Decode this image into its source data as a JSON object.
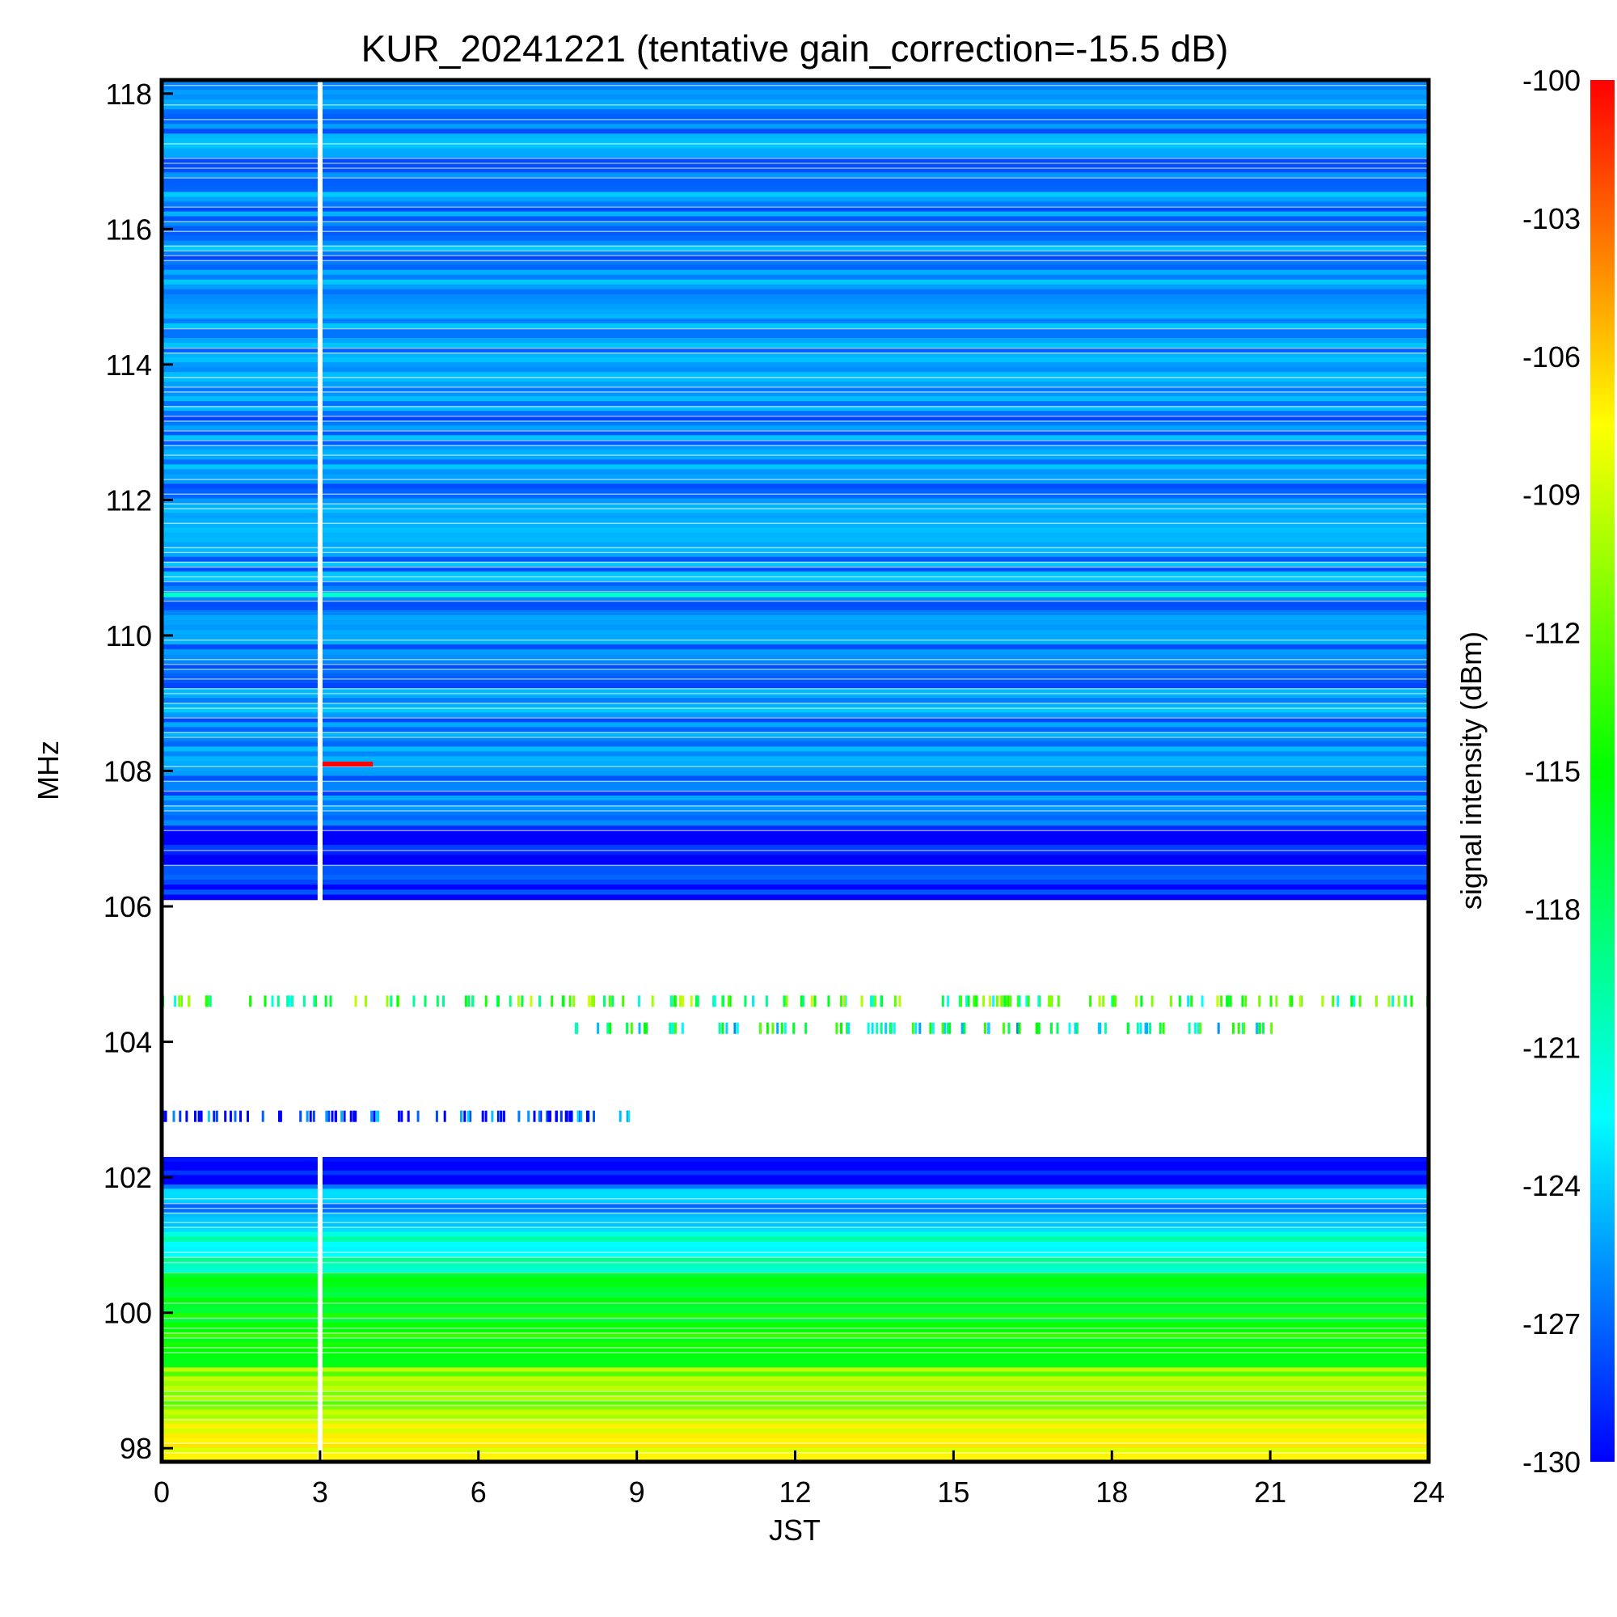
{
  "chart_data": {
    "type": "heatmap",
    "title": "KUR_20241221 (tentative gain_correction=-15.5 dB)",
    "xlabel": "JST",
    "ylabel": "MHz",
    "xlim": [
      0,
      24
    ],
    "ylim": [
      97.8,
      118.2
    ],
    "x_ticks": [
      "0",
      "3",
      "6",
      "9",
      "12",
      "15",
      "18",
      "21",
      "24"
    ],
    "y_ticks": [
      "98",
      "100",
      "102",
      "104",
      "106",
      "108",
      "110",
      "112",
      "114",
      "116",
      "118"
    ],
    "colorbar": {
      "label": "signal intensity (dBm)",
      "range": [
        -130,
        -100
      ],
      "ticks": [
        "-100",
        "-103",
        "-106",
        "-109",
        "-112",
        "-115",
        "-118",
        "-121",
        "-124",
        "-127",
        "-130"
      ],
      "colormap": [
        "#0000ff",
        "#0080ff",
        "#00ffff",
        "#00ff80",
        "#00ff00",
        "#80ff00",
        "#ffff00",
        "#ff8000",
        "#ff0000"
      ]
    },
    "bands": [
      {
        "from": 97.8,
        "to": 98.5,
        "intensity": -108
      },
      {
        "from": 98.5,
        "to": 99.2,
        "intensity": -111
      },
      {
        "from": 99.2,
        "to": 100.0,
        "intensity": -115
      },
      {
        "from": 100.0,
        "to": 100.6,
        "intensity": -117
      },
      {
        "from": 100.6,
        "to": 101.2,
        "intensity": -121
      },
      {
        "from": 101.2,
        "to": 101.9,
        "intensity": -125
      },
      {
        "from": 101.9,
        "to": 102.3,
        "intensity": -129
      },
      {
        "from": 102.3,
        "to": 106.1,
        "intensity": null
      },
      {
        "from": 106.1,
        "to": 107.2,
        "intensity": -129
      },
      {
        "from": 107.2,
        "to": 108.0,
        "intensity": -127
      },
      {
        "from": 108.0,
        "to": 118.2,
        "intensity": -126
      }
    ],
    "features": [
      {
        "freq": 110.6,
        "intensity": -121,
        "note": "persistent line"
      },
      {
        "freq": 108.1,
        "time": [
          3.0,
          4.0
        ],
        "intensity": -100
      },
      {
        "freq": 104.6,
        "time": [
          0.0,
          24.0
        ],
        "intensity": -116,
        "sparse": true
      },
      {
        "freq": 104.2,
        "time": [
          7.8,
          21.0
        ],
        "intensity": -119,
        "sparse": true
      },
      {
        "freq": 102.9,
        "time": [
          0.0,
          9.0
        ],
        "intensity": -130,
        "sparse": true
      }
    ],
    "data_gap": {
      "time": 3.0
    }
  }
}
